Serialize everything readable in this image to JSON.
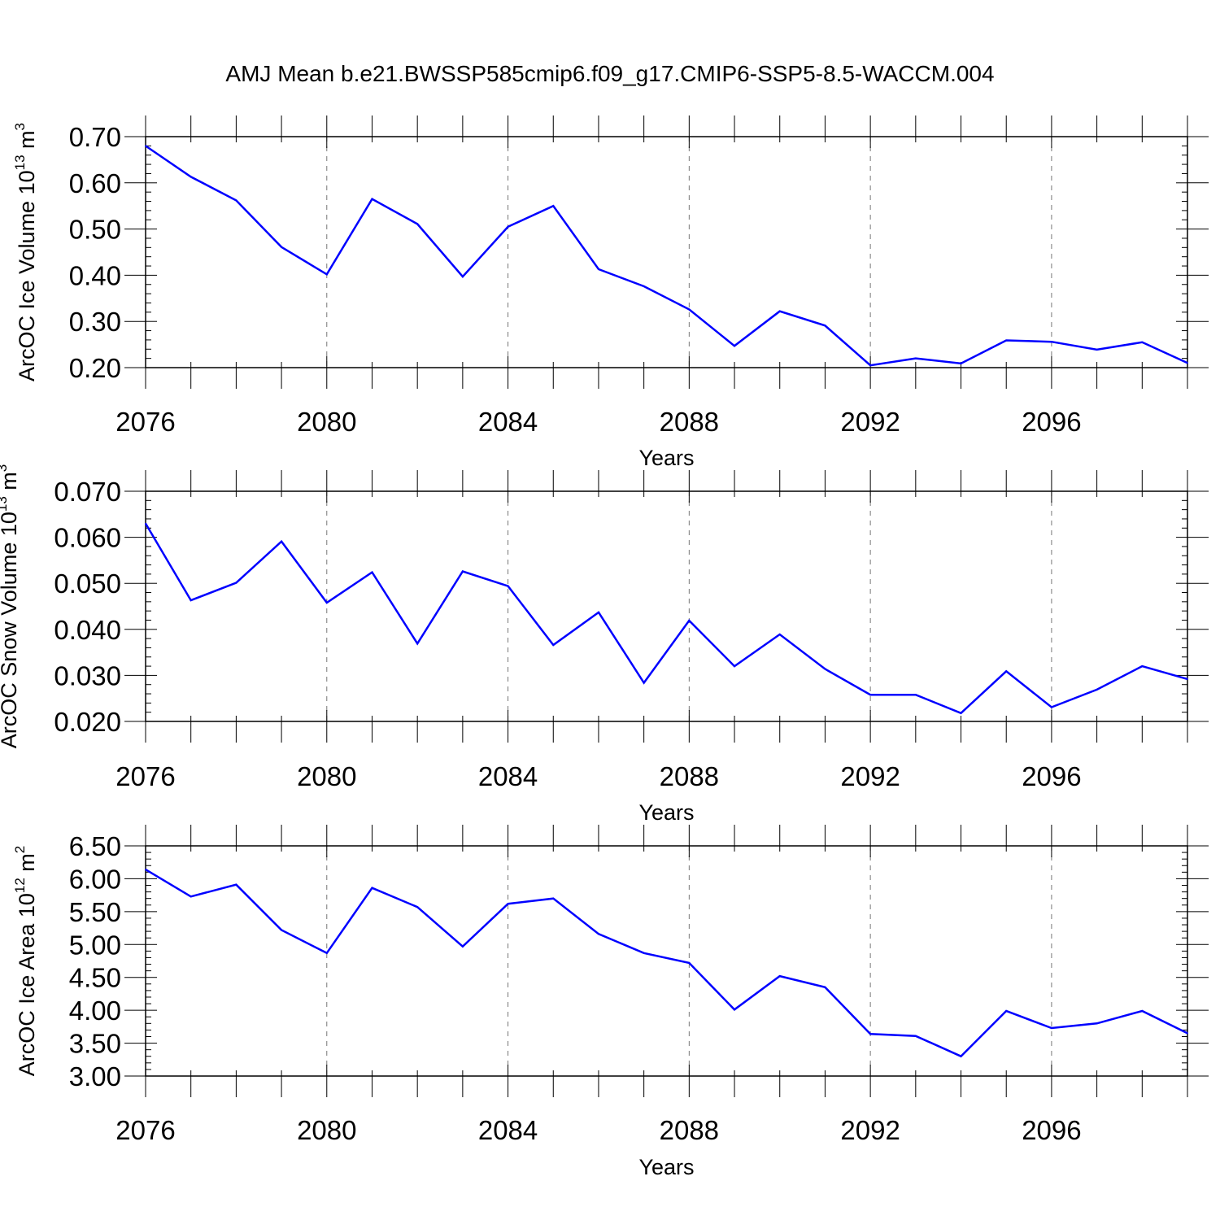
{
  "title": "AMJ Mean b.e21.BWSSP585cmip6.f09_g17.CMIP6-SSP5-8.5-WACCM.004",
  "line_color": "#0000ff",
  "chart_data": [
    {
      "type": "line",
      "ylabel": {
        "text": "ArcOC Ice Volume 10",
        "exp": "13",
        "unit": " m",
        "unit_exp": "3"
      },
      "xlabel": "Years",
      "x": [
        2076,
        2077,
        2078,
        2079,
        2080,
        2081,
        2082,
        2083,
        2084,
        2085,
        2086,
        2087,
        2088,
        2089,
        2090,
        2091,
        2092,
        2093,
        2094,
        2095,
        2096,
        2097,
        2098,
        2099
      ],
      "y": [
        0.68,
        0.613,
        0.562,
        0.461,
        0.402,
        0.565,
        0.511,
        0.397,
        0.505,
        0.55,
        0.413,
        0.376,
        0.326,
        0.247,
        0.322,
        0.291,
        0.205,
        0.22,
        0.209,
        0.259,
        0.256,
        0.239,
        0.255,
        0.21
      ],
      "xlim": [
        2076,
        2099
      ],
      "ylim": [
        0.2,
        0.7
      ],
      "yticks": [
        "0.70",
        "0.60",
        "0.50",
        "0.40",
        "0.30",
        "0.20"
      ],
      "yticks_values": [
        0.7,
        0.6,
        0.5,
        0.4,
        0.3,
        0.2
      ],
      "xticks": [
        "2076",
        "2080",
        "2084",
        "2088",
        "2092",
        "2096"
      ],
      "xticks_values": [
        2076,
        2080,
        2084,
        2088,
        2092,
        2096
      ],
      "minor_y_step": 0.02,
      "grid": "vertical dashed at major x ticks"
    },
    {
      "type": "line",
      "ylabel": {
        "text": "ArcOC Snow Volume 10",
        "exp": "13",
        "unit": " m",
        "unit_exp": "3"
      },
      "xlabel": "Years",
      "x": [
        2076,
        2077,
        2078,
        2079,
        2080,
        2081,
        2082,
        2083,
        2084,
        2085,
        2086,
        2087,
        2088,
        2089,
        2090,
        2091,
        2092,
        2093,
        2094,
        2095,
        2096,
        2097,
        2098,
        2099
      ],
      "y": [
        0.063,
        0.0463,
        0.0501,
        0.0591,
        0.0458,
        0.0524,
        0.0369,
        0.0526,
        0.0494,
        0.0366,
        0.0437,
        0.0284,
        0.0419,
        0.032,
        0.0389,
        0.0314,
        0.0258,
        0.0258,
        0.0218,
        0.0309,
        0.0231,
        0.0269,
        0.032,
        0.0292
      ],
      "xlim": [
        2076,
        2099
      ],
      "ylim": [
        0.02,
        0.07
      ],
      "yticks": [
        "0.070",
        "0.060",
        "0.050",
        "0.040",
        "0.030",
        "0.020"
      ],
      "yticks_values": [
        0.07,
        0.06,
        0.05,
        0.04,
        0.03,
        0.02
      ],
      "xticks": [
        "2076",
        "2080",
        "2084",
        "2088",
        "2092",
        "2096"
      ],
      "xticks_values": [
        2076,
        2080,
        2084,
        2088,
        2092,
        2096
      ],
      "minor_y_step": 0.002,
      "grid": "vertical dashed at major x ticks"
    },
    {
      "type": "line",
      "ylabel": {
        "text": "ArcOC Ice Area 10",
        "exp": "12",
        "unit": " m",
        "unit_exp": "2"
      },
      "xlabel": "Years",
      "x": [
        2076,
        2077,
        2078,
        2079,
        2080,
        2081,
        2082,
        2083,
        2084,
        2085,
        2086,
        2087,
        2088,
        2089,
        2090,
        2091,
        2092,
        2093,
        2094,
        2095,
        2096,
        2097,
        2098,
        2099
      ],
      "y": [
        6.14,
        5.73,
        5.91,
        5.22,
        4.87,
        5.86,
        5.57,
        4.97,
        5.62,
        5.7,
        5.16,
        4.87,
        4.72,
        4.01,
        4.52,
        4.35,
        3.64,
        3.61,
        3.3,
        3.99,
        3.73,
        3.8,
        3.99,
        3.65
      ],
      "xlim": [
        2076,
        2099
      ],
      "ylim": [
        3.0,
        6.5
      ],
      "yticks": [
        "6.50",
        "6.00",
        "5.50",
        "5.00",
        "4.50",
        "4.00",
        "3.50",
        "3.00"
      ],
      "yticks_values": [
        6.5,
        6.0,
        5.5,
        5.0,
        4.5,
        4.0,
        3.5,
        3.0
      ],
      "xticks": [
        "2076",
        "2080",
        "2084",
        "2088",
        "2092",
        "2096"
      ],
      "xticks_values": [
        2076,
        2080,
        2084,
        2088,
        2092,
        2096
      ],
      "minor_y_step": 0.1,
      "grid": "vertical dashed at major x ticks"
    }
  ]
}
